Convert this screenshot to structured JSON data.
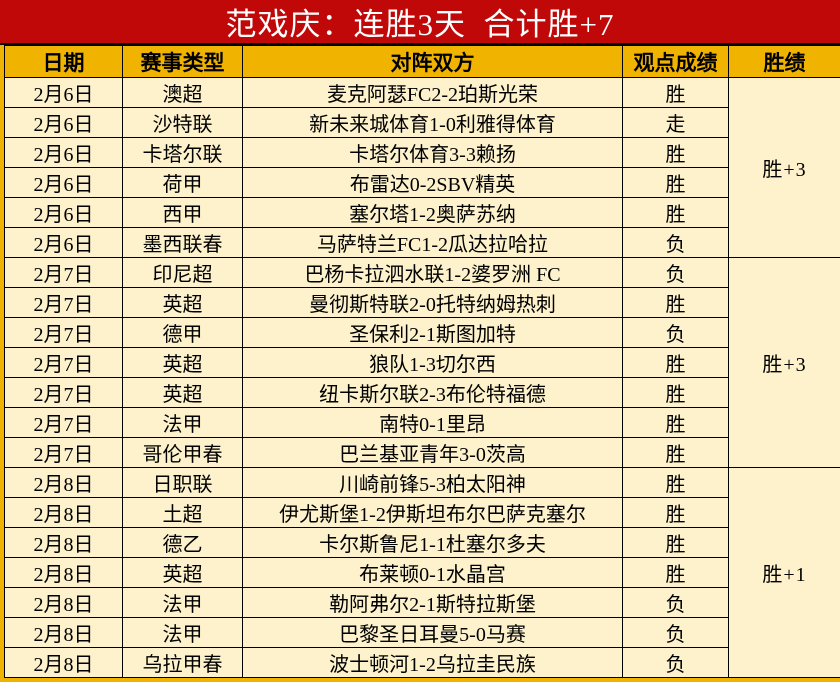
{
  "title": "范戏庆：连胜3天  合计胜+7",
  "loss_label": "负",
  "colors": {
    "title_bg": "#c00808",
    "title_text": "#ffffff",
    "header_bg": "#f0b400",
    "row_bg": "#fdf2cc",
    "summary_bg": "#c00808",
    "summary_text": "#ffffff",
    "win_text": "#f00c0c",
    "loss_text": "#000000",
    "border": "#000000"
  },
  "table": {
    "headers": [
      "日期",
      "赛事类型",
      "对阵双方",
      "观点成绩",
      "胜绩"
    ],
    "groups": [
      {
        "summary": "胜+3",
        "rows": [
          {
            "date": "2月6日",
            "league": "澳超",
            "match": "麦克阿瑟FC2-2珀斯光荣",
            "result": "胜"
          },
          {
            "date": "2月6日",
            "league": "沙特联",
            "match": "新未来城体育1-0利雅得体育",
            "result": "走"
          },
          {
            "date": "2月6日",
            "league": "卡塔尔联",
            "match": "卡塔尔体育3-3赖扬",
            "result": "胜"
          },
          {
            "date": "2月6日",
            "league": "荷甲",
            "match": "布雷达0-2SBV精英",
            "result": "胜"
          },
          {
            "date": "2月6日",
            "league": "西甲",
            "match": "塞尔塔1-2奥萨苏纳",
            "result": "胜"
          },
          {
            "date": "2月6日",
            "league": "墨西联春",
            "match": "马萨特兰FC1-2瓜达拉哈拉",
            "result": "负"
          }
        ]
      },
      {
        "summary": "胜+3",
        "rows": [
          {
            "date": "2月7日",
            "league": "印尼超",
            "match": "巴杨卡拉泗水联1-2婆罗洲 FC",
            "result": "负"
          },
          {
            "date": "2月7日",
            "league": "英超",
            "match": "曼彻斯特联2-0托特纳姆热刺",
            "result": "胜"
          },
          {
            "date": "2月7日",
            "league": "德甲",
            "match": "圣保利2-1斯图加特",
            "result": "负"
          },
          {
            "date": "2月7日",
            "league": "英超",
            "match": "狼队1-3切尔西",
            "result": "胜"
          },
          {
            "date": "2月7日",
            "league": "英超",
            "match": "纽卡斯尔联2-3布伦特福德",
            "result": "胜"
          },
          {
            "date": "2月7日",
            "league": "法甲",
            "match": "南特0-1里昂",
            "result": "胜"
          },
          {
            "date": "2月7日",
            "league": "哥伦甲春",
            "match": "巴兰基亚青年3-0茨高",
            "result": "胜"
          }
        ]
      },
      {
        "summary": "胜+1",
        "rows": [
          {
            "date": "2月8日",
            "league": "日职联",
            "match": "川崎前锋5-3柏太阳神",
            "result": "胜"
          },
          {
            "date": "2月8日",
            "league": "土超",
            "match": "伊尤斯堡1-2伊斯坦布尔巴萨克塞尔",
            "result": "胜"
          },
          {
            "date": "2月8日",
            "league": "德乙",
            "match": "卡尔斯鲁尼1-1杜塞尔多夫",
            "result": "胜"
          },
          {
            "date": "2月8日",
            "league": "英超",
            "match": "布莱顿0-1水晶宫",
            "result": "胜"
          },
          {
            "date": "2月8日",
            "league": "法甲",
            "match": "勒阿弗尔2-1斯特拉斯堡",
            "result": "负"
          },
          {
            "date": "2月8日",
            "league": "法甲",
            "match": "巴黎圣日耳曼5-0马赛",
            "result": "负"
          },
          {
            "date": "2月8日",
            "league": "乌拉甲春",
            "match": "波士顿河1-2乌拉圭民族",
            "result": "负"
          }
        ]
      }
    ]
  }
}
